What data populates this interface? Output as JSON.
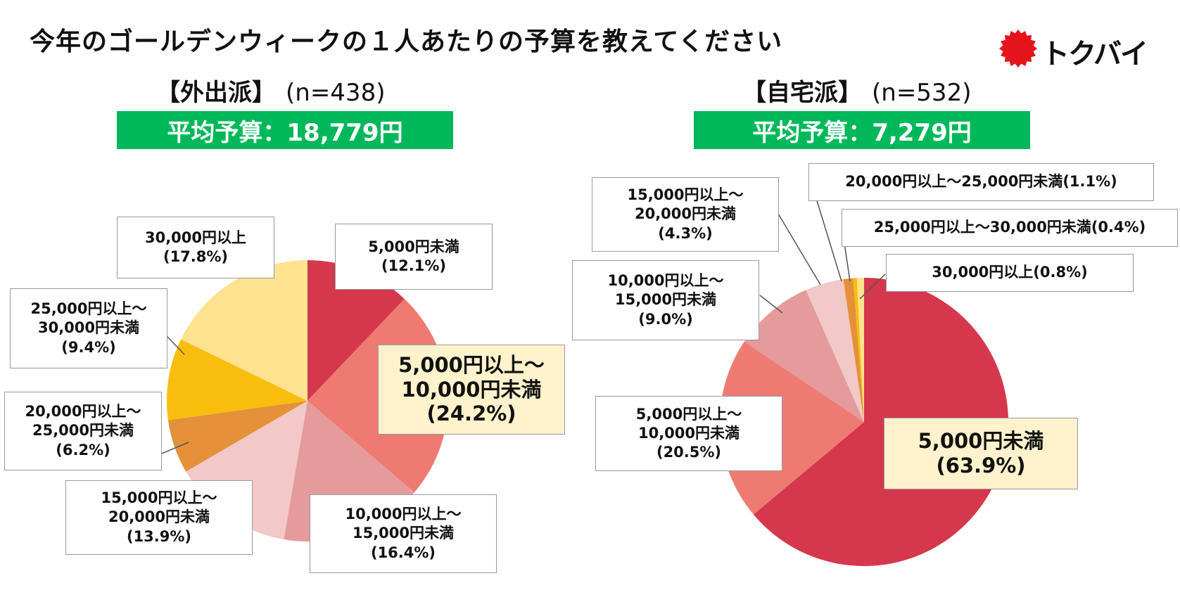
{
  "title": "今年のゴールデンウィークの１人あたりの予算を教えてください",
  "logo": {
    "text": "トクバイ",
    "mark_color": "#e5131c"
  },
  "colors": {
    "accent_green": "#00b859"
  },
  "chart_data": [
    {
      "type": "pie",
      "group_label": "【外出派】",
      "n_label": "(n=438)",
      "average_label": "平均予算：18,779円",
      "slices": [
        {
          "id": "lt5k",
          "lines": [
            "5,000円未満"
          ],
          "pct_label": "(12.1%)",
          "value": 12.1,
          "color": "#d5374d"
        },
        {
          "id": "5k-10k",
          "lines": [
            "5,000円以上～",
            "10,000円未満"
          ],
          "pct_label": "(24.2%)",
          "value": 24.2,
          "color": "#ee7b72"
        },
        {
          "id": "10k-15k",
          "lines": [
            "10,000円以上～",
            "15,000円未満"
          ],
          "pct_label": "(16.4%)",
          "value": 16.4,
          "color": "#e59b9b"
        },
        {
          "id": "15k-20k",
          "lines": [
            "15,000円以上～",
            "20,000円未満"
          ],
          "pct_label": "(13.9%)",
          "value": 13.9,
          "color": "#f3c8c8"
        },
        {
          "id": "20k-25k",
          "lines": [
            "20,000円以上～",
            "25,000円未満"
          ],
          "pct_label": "(6.2%)",
          "value": 6.2,
          "color": "#e4913a"
        },
        {
          "id": "25k-30k",
          "lines": [
            "25,000円以上～",
            "30,000円未満"
          ],
          "pct_label": "(9.4%)",
          "value": 9.4,
          "color": "#f9bd0d"
        },
        {
          "id": "30k+",
          "lines": [
            "30,000円以上"
          ],
          "pct_label": "(17.8%)",
          "value": 17.8,
          "color": "#fde290"
        }
      ]
    },
    {
      "type": "pie",
      "group_label": "【自宅派】",
      "n_label": "(n=532)",
      "average_label": "平均予算：7,279円",
      "slices": [
        {
          "id": "lt5k",
          "lines": [
            "5,000円未満"
          ],
          "pct_label": "(63.9%)",
          "value": 63.9,
          "color": "#d5374d"
        },
        {
          "id": "5k-10k",
          "lines": [
            "5,000円以上～",
            "10,000円未満"
          ],
          "pct_label": "(20.5%)",
          "value": 20.5,
          "color": "#ee7b72"
        },
        {
          "id": "10k-15k",
          "lines": [
            "10,000円以上～",
            "15,000円未満"
          ],
          "pct_label": "(9.0%)",
          "value": 9.0,
          "color": "#e59b9b"
        },
        {
          "id": "15k-20k",
          "lines": [
            "15,000円以上～",
            "20,000円未満"
          ],
          "pct_label": "(4.3%)",
          "value": 4.3,
          "color": "#f3c8c8"
        },
        {
          "id": "20k-25k",
          "lines": [
            "20,000円以上～25,000円未満"
          ],
          "pct_label": "(1.1%)",
          "value": 1.1,
          "color": "#e4913a"
        },
        {
          "id": "25k-30k",
          "lines": [
            "25,000円以上～30,000円未満"
          ],
          "pct_label": "(0.4%)",
          "value": 0.4,
          "color": "#f9bd0d"
        },
        {
          "id": "30k+",
          "lines": [
            "30,000円以上"
          ],
          "pct_label": "(0.8%)",
          "value": 0.8,
          "color": "#fde290"
        }
      ]
    }
  ]
}
